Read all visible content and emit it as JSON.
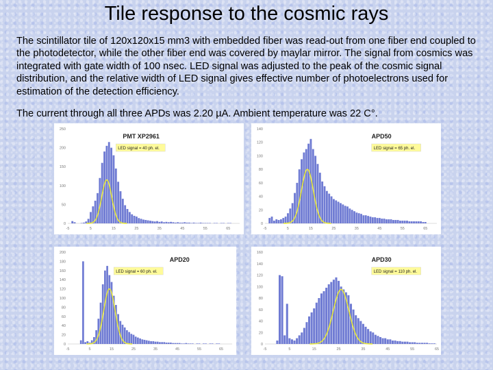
{
  "title": "Tile response to the cosmic rays",
  "paragraph1": "The scintillator tile of 120x120x15 mm3 with embedded fiber was read-out from one fiber end coupled to the photodetector, while the other fiber end was covered by maylar mirror. The signal from cosmics was integrated with gate width of 100 nsec. LED signal was adjusted to the peak of the cosmic signal distribution, and the relative width of LED signal gives effective number of photoelectrons used for estimation of the detection efficiency.",
  "paragraph2": "The current through all three APDs was 2.20 µA. Ambient temperature was 22 C°.",
  "colors": {
    "bars": "#6f7bd3",
    "led_curve": "#e8e83a",
    "note_bg": "#fffb9a"
  },
  "chart_data": [
    {
      "type": "bar",
      "title": "PMT XP2961",
      "annotation": "LED signal = 40 ph. el.",
      "ylim": [
        0,
        250
      ],
      "yticks": [
        0,
        50,
        100,
        150,
        200,
        250
      ],
      "xlim": [
        -5,
        70
      ],
      "xticks": [
        -5,
        5,
        15,
        25,
        35,
        45,
        55,
        65
      ],
      "bar_width": 1,
      "x": [
        -3,
        -2,
        1,
        2,
        3,
        4,
        5,
        6,
        7,
        8,
        9,
        10,
        11,
        12,
        13,
        14,
        15,
        16,
        17,
        18,
        19,
        20,
        21,
        22,
        23,
        24,
        25,
        26,
        27,
        28,
        29,
        30,
        31,
        32,
        33,
        34,
        35,
        36,
        37,
        38,
        39,
        40,
        41,
        42,
        43,
        44,
        45,
        46,
        47,
        48,
        49,
        50,
        51,
        52,
        53,
        54,
        55,
        56,
        57,
        58,
        59,
        60,
        61,
        62,
        63,
        64,
        65,
        66
      ],
      "values": [
        6,
        3,
        1,
        2,
        5,
        12,
        30,
        45,
        60,
        80,
        120,
        160,
        190,
        205,
        215,
        200,
        180,
        145,
        110,
        85,
        65,
        48,
        38,
        30,
        24,
        20,
        18,
        14,
        12,
        10,
        9,
        8,
        7,
        6,
        5,
        6,
        4,
        5,
        3,
        4,
        3,
        4,
        3,
        2,
        3,
        2,
        2,
        3,
        2,
        2,
        1,
        2,
        1,
        1,
        2,
        1,
        1,
        1,
        1,
        0,
        1,
        1,
        0,
        1,
        1,
        0,
        1,
        1
      ],
      "led_curve": {
        "mean": 12,
        "sigma": 2.2,
        "peak": 115
      }
    },
    {
      "type": "bar",
      "title": "APD50",
      "annotation": "LED signal = 65 ph. el.",
      "ylim": [
        0,
        140
      ],
      "yticks": [
        0,
        20,
        40,
        60,
        80,
        100,
        120,
        140
      ],
      "xlim": [
        -5,
        70
      ],
      "xticks": [
        -5,
        5,
        15,
        25,
        35,
        45,
        55,
        65
      ],
      "bar_width": 1,
      "x": [
        -3,
        -2,
        -1,
        0,
        1,
        2,
        3,
        4,
        5,
        6,
        7,
        8,
        9,
        10,
        11,
        12,
        13,
        14,
        15,
        16,
        17,
        18,
        19,
        20,
        21,
        22,
        23,
        24,
        25,
        26,
        27,
        28,
        29,
        30,
        31,
        32,
        33,
        34,
        35,
        36,
        37,
        38,
        39,
        40,
        41,
        42,
        43,
        44,
        45,
        46,
        47,
        48,
        49,
        50,
        51,
        52,
        53,
        54,
        55,
        56,
        57,
        58,
        59,
        60,
        61,
        62,
        63,
        64,
        65
      ],
      "values": [
        8,
        10,
        4,
        6,
        5,
        6,
        8,
        10,
        15,
        22,
        30,
        45,
        60,
        80,
        95,
        105,
        110,
        118,
        125,
        110,
        100,
        88,
        75,
        62,
        55,
        48,
        44,
        40,
        36,
        34,
        32,
        30,
        28,
        26,
        25,
        22,
        20,
        18,
        16,
        15,
        14,
        12,
        12,
        11,
        10,
        9,
        9,
        8,
        8,
        7,
        7,
        6,
        6,
        6,
        5,
        5,
        5,
        4,
        4,
        4,
        4,
        3,
        3,
        3,
        3,
        3,
        3,
        2,
        2
      ],
      "led_curve": {
        "mean": 13.5,
        "sigma": 2.6,
        "peak": 80
      }
    },
    {
      "type": "bar",
      "title": "APD20",
      "annotation": "LED signal = 60 ph. el.",
      "ylim": [
        0,
        200
      ],
      "yticks": [
        0,
        20,
        40,
        60,
        80,
        100,
        120,
        140,
        160,
        180,
        200
      ],
      "xlim": [
        -5,
        70
      ],
      "xticks": [
        -5,
        5,
        15,
        25,
        35,
        45,
        55,
        65
      ],
      "bar_width": 1,
      "x": [
        1,
        2,
        3,
        4,
        5,
        6,
        7,
        8,
        9,
        10,
        11,
        12,
        13,
        14,
        15,
        16,
        17,
        18,
        19,
        20,
        21,
        22,
        23,
        24,
        25,
        26,
        27,
        28,
        29,
        30,
        31,
        32,
        33,
        34,
        35,
        36,
        37,
        38,
        39,
        40,
        41,
        42,
        43,
        44,
        45,
        46,
        47,
        48,
        49,
        50,
        51,
        52,
        53,
        54,
        55,
        56,
        57,
        58,
        59,
        60,
        61,
        62,
        63,
        64,
        65
      ],
      "values": [
        8,
        180,
        4,
        6,
        3,
        8,
        15,
        30,
        55,
        90,
        130,
        160,
        170,
        150,
        135,
        105,
        85,
        65,
        50,
        42,
        36,
        30,
        26,
        22,
        20,
        16,
        14,
        12,
        10,
        9,
        8,
        7,
        6,
        6,
        5,
        5,
        4,
        4,
        4,
        3,
        3,
        3,
        2,
        2,
        2,
        2,
        1,
        1,
        2,
        1,
        1,
        1,
        0,
        1,
        1,
        0,
        1,
        1,
        0,
        1,
        1,
        0,
        1,
        1,
        0
      ],
      "led_curve": {
        "mean": 14,
        "sigma": 2.6,
        "peak": 120
      }
    },
    {
      "type": "bar",
      "title": "APD30",
      "annotation": "LED signal = 110 ph. el.",
      "ylim": [
        0,
        160
      ],
      "yticks": [
        0,
        20,
        40,
        60,
        80,
        100,
        120,
        140,
        160
      ],
      "xlim": [
        -5,
        65
      ],
      "xticks": [
        -5,
        5,
        15,
        25,
        35,
        45,
        55,
        65
      ],
      "bar_width": 1,
      "x": [
        0,
        1,
        2,
        3,
        4,
        5,
        6,
        7,
        8,
        9,
        10,
        11,
        12,
        13,
        14,
        15,
        16,
        17,
        18,
        19,
        20,
        21,
        22,
        23,
        24,
        25,
        26,
        27,
        28,
        29,
        30,
        31,
        32,
        33,
        34,
        35,
        36,
        37,
        38,
        39,
        40,
        41,
        42,
        43,
        44,
        45,
        46,
        47,
        48,
        49,
        50,
        51,
        52,
        53,
        54,
        55,
        56,
        57,
        58,
        59,
        60,
        61,
        62,
        63,
        64
      ],
      "values": [
        6,
        120,
        118,
        15,
        70,
        10,
        8,
        6,
        10,
        15,
        20,
        28,
        38,
        48,
        55,
        62,
        72,
        80,
        88,
        92,
        98,
        104,
        108,
        112,
        116,
        110,
        100,
        95,
        90,
        85,
        70,
        60,
        50,
        45,
        40,
        35,
        30,
        26,
        22,
        20,
        16,
        14,
        12,
        10,
        10,
        8,
        8,
        6,
        6,
        5,
        5,
        4,
        4,
        4,
        3,
        3,
        3,
        2,
        2,
        2,
        2,
        2,
        1,
        1,
        1
      ],
      "led_curve": {
        "mean": 26,
        "sigma": 3.2,
        "peak": 95
      }
    }
  ]
}
